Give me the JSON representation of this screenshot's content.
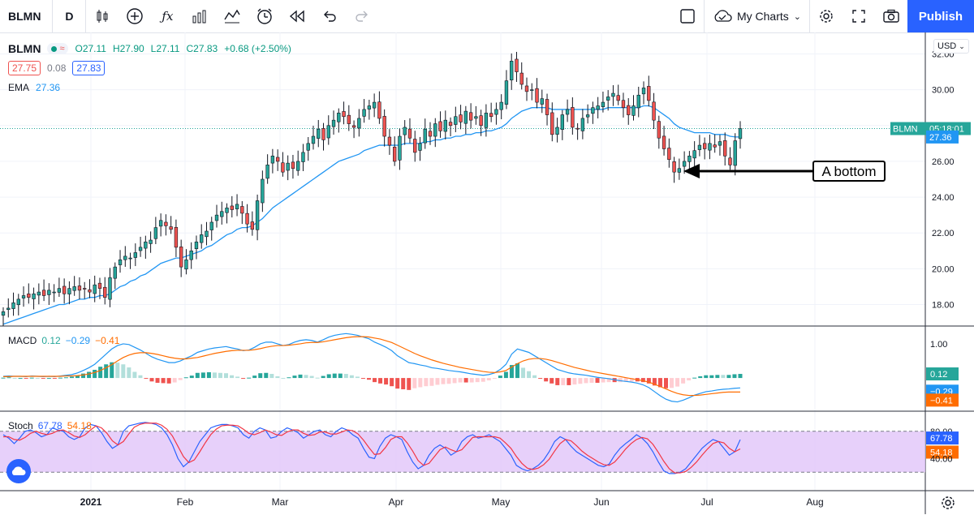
{
  "toolbar": {
    "symbol": "BLMN",
    "interval": "D",
    "my_charts": "My Charts",
    "publish": "Publish"
  },
  "legend": {
    "symbol": "BLMN",
    "open": "O27.11",
    "high": "H27.90",
    "low": "L27.11",
    "close": "C27.83",
    "change": "+0.68 (+2.50%)",
    "bid": "27.75",
    "spread": "0.08",
    "ask": "27.83",
    "ema_label": "EMA",
    "ema_value": "27.36"
  },
  "currency": "USD",
  "macd_legend": {
    "label": "MACD",
    "v1": "0.12",
    "v2": "−0.29",
    "v3": "−0.41"
  },
  "stoch_legend": {
    "label": "Stoch",
    "v1": "67.78",
    "v2": "54.18"
  },
  "annotation": "A bottom",
  "colors": {
    "up": "#26a69a",
    "down": "#ef5350",
    "ema": "#2196f3",
    "macd_line": "#2196f3",
    "signal": "#ff6d00",
    "stoch_k": "#2962ff",
    "stoch_d": "#f23645",
    "stoch_band": "#e1c4f9"
  },
  "chart_data": {
    "type": "candlestick",
    "price_axis_ticks": [
      18,
      20,
      22,
      24,
      26,
      28,
      30,
      32
    ],
    "price_axis_labels": [
      "18.00",
      "20.00",
      "22.00",
      "24.00",
      "26.00",
      "28.00",
      "30.00",
      "32.00"
    ],
    "price_range": [
      16.8,
      33.2
    ],
    "x_labels": [
      "2021",
      "Feb",
      "Mar",
      "Apr",
      "May",
      "Jun",
      "Jul",
      "Aug"
    ],
    "last_price_label": "BLMN",
    "last_price": 27.83,
    "last_price_time": "05:18:01",
    "ema_last": 27.36,
    "close_series": [
      17.6,
      17.8,
      18.1,
      18.3,
      18.5,
      18.4,
      18.6,
      18.7,
      18.5,
      18.8,
      18.7,
      18.9,
      18.6,
      18.9,
      19.0,
      18.8,
      18.9,
      18.7,
      19.1,
      18.9,
      18.4,
      19.5,
      20.1,
      20.5,
      20.7,
      20.6,
      20.9,
      21.2,
      21.5,
      21.6,
      22.3,
      22.7,
      22.4,
      22.2,
      21.2,
      20.1,
      20.5,
      21.0,
      21.5,
      21.9,
      22.1,
      22.6,
      23.0,
      23.2,
      23.4,
      23.3,
      23.6,
      23.1,
      22.5,
      22.2,
      23.8,
      25.0,
      25.8,
      26.3,
      26.0,
      25.4,
      25.9,
      25.6,
      26.0,
      26.5,
      27.0,
      27.4,
      27.8,
      27.2,
      28.0,
      28.3,
      28.7,
      28.5,
      28.1,
      27.9,
      28.4,
      28.9,
      29.1,
      29.3,
      28.4,
      27.4,
      26.9,
      26.0,
      27.4,
      27.9,
      27.3,
      26.5,
      27.0,
      27.8,
      27.4,
      28.1,
      27.7,
      28.3,
      28.0,
      28.5,
      28.2,
      28.8,
      28.3,
      28.5,
      28.0,
      28.7,
      28.5,
      28.9,
      29.3,
      30.5,
      31.6,
      31.0,
      30.3,
      29.9,
      30.0,
      29.3,
      29.5,
      28.6,
      27.5,
      27.9,
      28.6,
      28.9,
      27.9,
      27.8,
      28.4,
      28.6,
      29.0,
      29.1,
      29.3,
      29.6,
      29.8,
      29.4,
      29.0,
      28.6,
      29.1,
      29.7,
      30.1,
      29.4,
      28.3,
      27.3,
      26.7,
      26.1,
      25.4,
      25.6,
      26.0,
      26.3,
      26.6,
      26.9,
      26.7,
      27.0,
      26.8,
      27.1,
      26.3,
      25.8,
      27.15,
      27.83
    ],
    "ema_series": [
      16.9,
      17.0,
      17.1,
      17.2,
      17.3,
      17.4,
      17.5,
      17.6,
      17.7,
      17.8,
      17.9,
      18.0,
      18.0,
      18.1,
      18.2,
      18.3,
      18.3,
      18.4,
      18.4,
      18.5,
      18.5,
      18.6,
      18.8,
      19.0,
      19.1,
      19.3,
      19.4,
      19.6,
      19.7,
      19.9,
      20.1,
      20.3,
      20.4,
      20.5,
      20.6,
      20.6,
      20.7,
      20.8,
      20.9,
      21.0,
      21.2,
      21.3,
      21.5,
      21.7,
      21.9,
      22.0,
      22.2,
      22.3,
      22.3,
      22.4,
      22.6,
      22.8,
      23.1,
      23.4,
      23.6,
      23.8,
      24.0,
      24.2,
      24.4,
      24.6,
      24.8,
      25.0,
      25.2,
      25.4,
      25.6,
      25.8,
      26.0,
      26.1,
      26.2,
      26.3,
      26.4,
      26.6,
      26.7,
      26.8,
      26.9,
      26.9,
      26.9,
      26.9,
      26.9,
      27.0,
      27.0,
      27.0,
      27.0,
      27.1,
      27.1,
      27.2,
      27.2,
      27.3,
      27.3,
      27.4,
      27.4,
      27.5,
      27.5,
      27.6,
      27.6,
      27.7,
      27.7,
      27.8,
      27.9,
      28.1,
      28.4,
      28.6,
      28.8,
      28.9,
      29.0,
      29.0,
      29.0,
      29.0,
      28.9,
      28.9,
      28.9,
      28.9,
      28.9,
      28.9,
      28.9,
      28.9,
      28.9,
      28.9,
      28.9,
      29.0,
      29.0,
      29.0,
      29.0,
      29.0,
      29.0,
      29.0,
      29.1,
      29.1,
      29.0,
      28.8,
      28.6,
      28.4,
      28.1,
      27.9,
      27.8,
      27.7,
      27.6,
      27.6,
      27.6,
      27.6,
      27.5,
      27.5,
      27.5,
      27.4,
      27.36,
      27.36
    ],
    "macd_axis_ticks": [
      "1.00",
      "0.12",
      "−0.29",
      "−0.41"
    ],
    "macd_series": [
      0.05,
      0.06,
      0.05,
      0.05,
      0.04,
      0.06,
      0.05,
      0.04,
      0.05,
      0.04,
      0.06,
      0.08,
      0.1,
      0.15,
      0.22,
      0.3,
      0.4,
      0.55,
      0.7,
      0.85,
      0.95,
      1.0,
      0.98,
      0.9,
      0.82,
      0.72,
      0.62,
      0.55,
      0.5,
      0.45,
      0.45,
      0.5,
      0.58,
      0.65,
      0.75,
      0.8,
      0.85,
      0.88,
      0.9,
      0.92,
      0.88,
      0.85,
      0.8,
      0.82,
      0.9,
      1.0,
      1.05,
      1.05,
      1.0,
      0.95,
      0.98,
      1.05,
      1.1,
      1.12,
      1.1,
      1.05,
      1.12,
      1.2,
      1.25,
      1.28,
      1.3,
      1.28,
      1.25,
      1.2,
      1.15,
      1.05,
      0.98,
      0.9,
      0.8,
      0.65,
      0.55,
      0.45,
      0.42,
      0.38,
      0.35,
      0.3,
      0.28,
      0.25,
      0.22,
      0.2,
      0.18,
      0.15,
      0.12,
      0.1,
      0.08,
      0.1,
      0.15,
      0.25,
      0.4,
      0.7,
      0.85,
      0.8,
      0.75,
      0.65,
      0.55,
      0.45,
      0.35,
      0.25,
      0.2,
      0.15,
      0.12,
      0.1,
      0.08,
      0.05,
      0.02,
      0.0,
      -0.02,
      -0.05,
      -0.08,
      -0.1,
      -0.12,
      -0.15,
      -0.2,
      -0.28,
      -0.4,
      -0.52,
      -0.62,
      -0.68,
      -0.7,
      -0.65,
      -0.58,
      -0.5,
      -0.45,
      -0.4,
      -0.38,
      -0.35,
      -0.33,
      -0.32,
      -0.3,
      -0.29
    ],
    "macd_signal_series": [
      0.04,
      0.04,
      0.05,
      0.05,
      0.05,
      0.05,
      0.05,
      0.05,
      0.05,
      0.05,
      0.05,
      0.06,
      0.06,
      0.07,
      0.09,
      0.12,
      0.16,
      0.22,
      0.3,
      0.39,
      0.5,
      0.6,
      0.67,
      0.72,
      0.74,
      0.74,
      0.72,
      0.69,
      0.65,
      0.61,
      0.58,
      0.56,
      0.56,
      0.58,
      0.6,
      0.64,
      0.68,
      0.72,
      0.75,
      0.78,
      0.8,
      0.81,
      0.81,
      0.81,
      0.83,
      0.86,
      0.9,
      0.93,
      0.95,
      0.95,
      0.96,
      0.98,
      1.0,
      1.03,
      1.04,
      1.04,
      1.06,
      1.09,
      1.12,
      1.15,
      1.18,
      1.2,
      1.21,
      1.21,
      1.2,
      1.17,
      1.14,
      1.09,
      1.04,
      0.96,
      0.88,
      0.8,
      0.72,
      0.65,
      0.59,
      0.53,
      0.48,
      0.43,
      0.39,
      0.35,
      0.31,
      0.28,
      0.25,
      0.22,
      0.19,
      0.17,
      0.16,
      0.18,
      0.22,
      0.32,
      0.42,
      0.5,
      0.55,
      0.57,
      0.57,
      0.55,
      0.51,
      0.46,
      0.41,
      0.36,
      0.31,
      0.27,
      0.23,
      0.19,
      0.16,
      0.13,
      0.1,
      0.07,
      0.04,
      0.01,
      -0.02,
      -0.05,
      -0.08,
      -0.12,
      -0.18,
      -0.25,
      -0.32,
      -0.39,
      -0.45,
      -0.49,
      -0.51,
      -0.51,
      -0.5,
      -0.48,
      -0.46,
      -0.44,
      -0.42,
      -0.41,
      -0.41,
      -0.41
    ],
    "stoch_axis_ticks": [
      "80.00",
      "67.78",
      "54.18",
      "40.00"
    ],
    "stoch_band": [
      20,
      80
    ],
    "stoch_k_series": [
      75,
      70,
      62,
      70,
      80,
      82,
      78,
      72,
      75,
      85,
      82,
      80,
      72,
      68,
      72,
      85,
      90,
      88,
      78,
      65,
      55,
      60,
      80,
      88,
      90,
      92,
      93,
      92,
      90,
      85,
      75,
      60,
      40,
      28,
      35,
      50,
      65,
      75,
      85,
      88,
      90,
      90,
      88,
      85,
      75,
      70,
      80,
      85,
      82,
      70,
      72,
      80,
      85,
      82,
      78,
      70,
      75,
      80,
      82,
      75,
      72,
      80,
      85,
      82,
      75,
      70,
      55,
      42,
      40,
      58,
      70,
      75,
      72,
      68,
      50,
      35,
      25,
      30,
      45,
      55,
      60,
      55,
      45,
      50,
      65,
      72,
      75,
      70,
      72,
      75,
      70,
      65,
      55,
      45,
      30,
      25,
      22,
      25,
      30,
      38,
      50,
      65,
      72,
      68,
      58,
      50,
      45,
      40,
      35,
      30,
      28,
      32,
      45,
      55,
      62,
      68,
      75,
      70,
      62,
      50,
      35,
      22,
      18,
      18,
      20,
      25,
      35,
      45,
      55,
      62,
      68,
      65,
      55,
      45,
      50,
      67.78
    ],
    "stoch_d_series": [
      72,
      72,
      68,
      67,
      71,
      77,
      80,
      77,
      75,
      77,
      81,
      82,
      78,
      73,
      71,
      75,
      82,
      88,
      85,
      77,
      66,
      60,
      65,
      76,
      86,
      90,
      92,
      92,
      92,
      89,
      83,
      73,
      58,
      43,
      34,
      38,
      50,
      63,
      75,
      83,
      88,
      89,
      89,
      88,
      83,
      77,
      75,
      78,
      82,
      79,
      75,
      74,
      79,
      82,
      82,
      77,
      74,
      75,
      79,
      79,
      76,
      76,
      79,
      82,
      81,
      76,
      67,
      56,
      46,
      47,
      56,
      68,
      72,
      72,
      63,
      51,
      37,
      30,
      33,
      43,
      53,
      57,
      53,
      50,
      53,
      62,
      71,
      72,
      72,
      72,
      72,
      70,
      63,
      55,
      43,
      33,
      26,
      24,
      26,
      31,
      39,
      51,
      62,
      68,
      66,
      59,
      51,
      45,
      40,
      35,
      31,
      30,
      35,
      44,
      54,
      62,
      68,
      71,
      69,
      61,
      49,
      36,
      25,
      19,
      19,
      21,
      27,
      35,
      45,
      54,
      62,
      65,
      63,
      55,
      50,
      54.18
    ]
  }
}
